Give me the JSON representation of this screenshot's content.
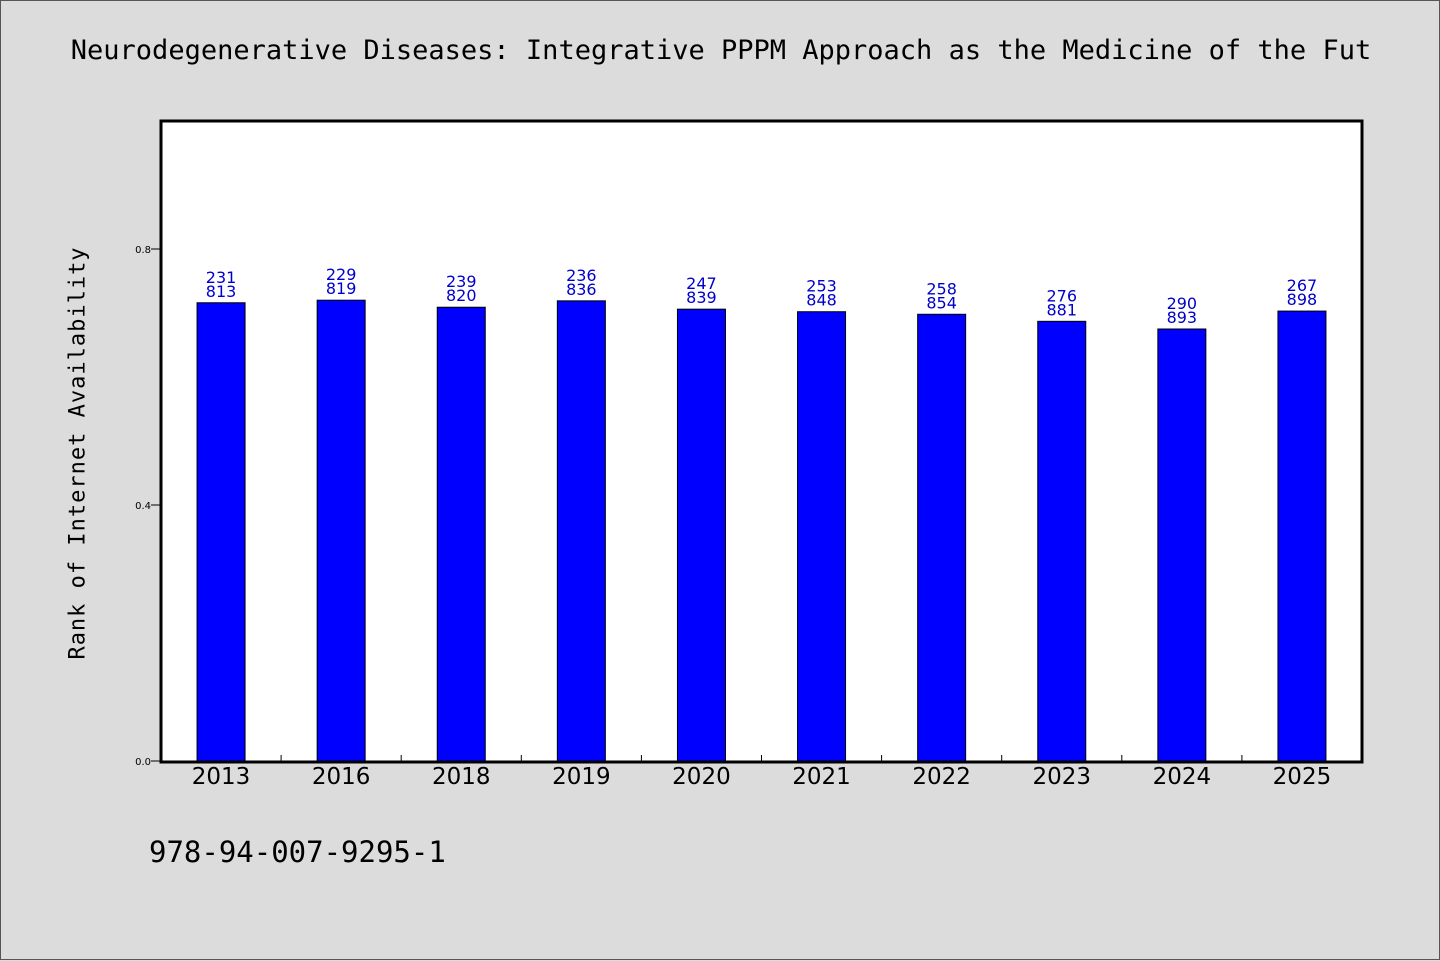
{
  "chart_data": {
    "type": "bar",
    "title": "Neurodegenerative Diseases: Integrative PPPM Approach as the Medicine of the Fut",
    "xlabel": "",
    "ylabel": "Rank of Internet Availability",
    "categories": [
      "2013",
      "2016",
      "2018",
      "2019",
      "2020",
      "2021",
      "2022",
      "2023",
      "2024",
      "2025"
    ],
    "values": [
      0.716,
      0.72,
      0.709,
      0.719,
      0.706,
      0.702,
      0.698,
      0.687,
      0.675,
      0.703
    ],
    "data_labels_top": [
      "231",
      "229",
      "239",
      "236",
      "247",
      "253",
      "258",
      "276",
      "290",
      "267"
    ],
    "data_labels_bottom": [
      "813",
      "819",
      "820",
      "836",
      "839",
      "848",
      "854",
      "881",
      "893",
      "898"
    ],
    "ylim": [
      0,
      1.0
    ],
    "yticks": [
      {
        "value": 0.0,
        "label": "0.0"
      },
      {
        "value": 0.4,
        "label": "0.4"
      },
      {
        "value": 0.8,
        "label": "0.8"
      }
    ],
    "grid": false,
    "legend": "none",
    "bar_color": "#0000ff",
    "label_color": "#0000cc"
  },
  "footer": {
    "text": "978-94-007-9295-1"
  },
  "colors": {
    "background": "#dcdcdc",
    "plot_background": "#ffffff"
  }
}
